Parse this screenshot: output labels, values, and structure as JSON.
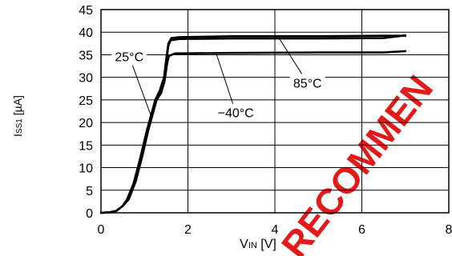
{
  "chart_data": {
    "type": "line",
    "title": "",
    "xlabel": {
      "main": "V",
      "sub": "IN",
      "unit": " [V]"
    },
    "ylabel": {
      "main": "I",
      "sub": "SS1",
      "unit": " [µA]"
    },
    "xlim": [
      0,
      8
    ],
    "ylim": [
      0,
      45
    ],
    "x_ticks": [
      0,
      2,
      4,
      6,
      8
    ],
    "y_ticks": [
      0,
      5,
      10,
      15,
      20,
      25,
      30,
      35,
      40,
      45
    ],
    "grid": true,
    "series": [
      {
        "name": "85°C",
        "points": [
          [
            0,
            0
          ],
          [
            0.2,
            0.1
          ],
          [
            0.35,
            0.4
          ],
          [
            0.5,
            1.5
          ],
          [
            0.6,
            3
          ],
          [
            0.75,
            6.5
          ],
          [
            0.9,
            12
          ],
          [
            1.05,
            18
          ],
          [
            1.15,
            21.5
          ],
          [
            1.25,
            25
          ],
          [
            1.35,
            27
          ],
          [
            1.45,
            30
          ],
          [
            1.5,
            34
          ],
          [
            1.55,
            37.5
          ],
          [
            1.62,
            38.7
          ],
          [
            1.8,
            38.9
          ],
          [
            3,
            39.1
          ],
          [
            5,
            39.1
          ],
          [
            6.5,
            39.2
          ],
          [
            7,
            39.2
          ]
        ]
      },
      {
        "name": "25°C",
        "points": [
          [
            0,
            0
          ],
          [
            0.2,
            0.1
          ],
          [
            0.35,
            0.4
          ],
          [
            0.5,
            1.5
          ],
          [
            0.62,
            3
          ],
          [
            0.78,
            7
          ],
          [
            0.92,
            12.5
          ],
          [
            1.05,
            18
          ],
          [
            1.15,
            21.5
          ],
          [
            1.25,
            25
          ],
          [
            1.35,
            26.5
          ],
          [
            1.45,
            29.5
          ],
          [
            1.5,
            33.5
          ],
          [
            1.55,
            37
          ],
          [
            1.6,
            38.2
          ],
          [
            1.8,
            38.5
          ],
          [
            3,
            38.6
          ],
          [
            5,
            38.6
          ],
          [
            6.5,
            38.7
          ],
          [
            7,
            39.3
          ]
        ]
      },
      {
        "name": "−40°C",
        "points": [
          [
            0,
            0
          ],
          [
            0.2,
            0.1
          ],
          [
            0.35,
            0.4
          ],
          [
            0.5,
            1.5
          ],
          [
            0.64,
            3
          ],
          [
            0.8,
            7
          ],
          [
            0.95,
            12.5
          ],
          [
            1.08,
            18
          ],
          [
            1.18,
            21.5
          ],
          [
            1.28,
            25
          ],
          [
            1.38,
            26.5
          ],
          [
            1.46,
            29
          ],
          [
            1.52,
            33
          ],
          [
            1.56,
            34.7
          ],
          [
            1.7,
            35.3
          ],
          [
            3,
            35.4
          ],
          [
            5,
            35.5
          ],
          [
            6.5,
            35.5
          ],
          [
            7,
            35.8
          ]
        ]
      }
    ],
    "annotations": [
      {
        "text": "25°C",
        "x": 0.65,
        "y": 34.6,
        "ax": 1.15,
        "ay": 21.5
      },
      {
        "text": "85°C",
        "x": 4.75,
        "y": 28.8,
        "ax": 4.1,
        "ay": 38.6
      },
      {
        "text": "−40°C",
        "x": 3.1,
        "y": 22.2,
        "ax": 2.65,
        "ay": 35.3
      }
    ]
  },
  "watermark": {
    "text": "RECOMMEN",
    "color": "#e41a1a"
  }
}
